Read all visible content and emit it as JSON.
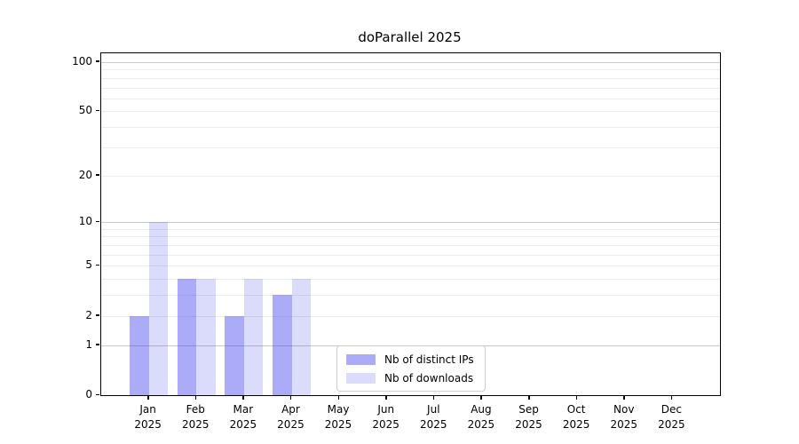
{
  "chart_data": {
    "type": "bar",
    "title": "doParallel 2025",
    "categories": [
      "Jan",
      "Feb",
      "Mar",
      "Apr",
      "May",
      "Jun",
      "Jul",
      "Aug",
      "Sep",
      "Oct",
      "Nov",
      "Dec"
    ],
    "x_year_label": "2025",
    "series": [
      {
        "name": "Nb of distinct IPs",
        "color_hex": "#a9a9f9",
        "color_alpha": "rgba(44,44,235,0.40)",
        "values": [
          2,
          4,
          2,
          3,
          0,
          0,
          0,
          0,
          0,
          0,
          0,
          0
        ]
      },
      {
        "name": "Nb of downloads",
        "color_hex": "#d9d9f8",
        "color_alpha": "rgba(44,44,235,0.17)",
        "values": [
          10,
          4,
          4,
          4,
          0,
          0,
          0,
          0,
          0,
          0,
          0,
          0
        ]
      }
    ],
    "scale": "log1p",
    "ylim": [
      0,
      113
    ],
    "yticks": [
      0,
      1,
      2,
      5,
      10,
      20,
      50,
      100
    ],
    "major_gridlines": [
      1,
      10,
      100
    ],
    "minor_gridlines": [
      2,
      3,
      4,
      5,
      6,
      7,
      8,
      9,
      20,
      30,
      40,
      50,
      60,
      70,
      80,
      90
    ],
    "grid_on": true,
    "legend_position": "lower-center-left",
    "colors": {
      "grid_minor": "#ececec",
      "grid_major": "#c9c9c9",
      "spine": "#000000",
      "text": "#000000",
      "legend_border": "#cfcfcf",
      "background": "#ffffff"
    }
  }
}
